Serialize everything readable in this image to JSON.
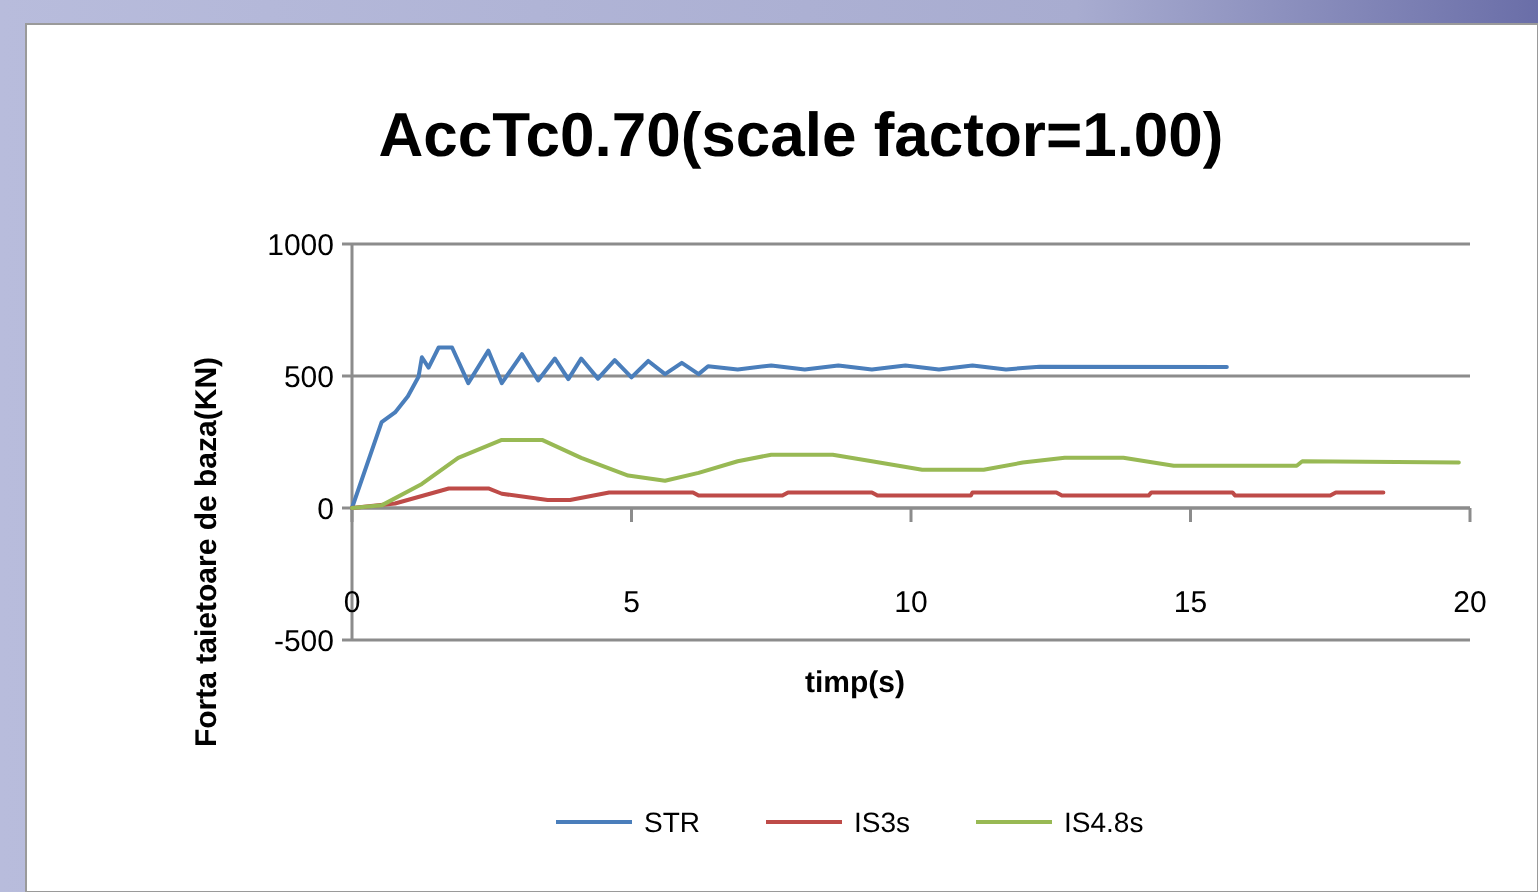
{
  "chart_data": {
    "type": "line",
    "title": "AccTc0.70(scale factor=1.00)",
    "xlabel": "timp(s)",
    "ylabel": "Forta taietoare de baza(KN)",
    "xlim": [
      0,
      20
    ],
    "xticks": [
      0,
      5,
      10,
      15,
      20
    ],
    "ylim": [
      -500,
      1000
    ],
    "yticks": [
      -500,
      0,
      500,
      1000
    ],
    "grid": "y",
    "legend": "bottom",
    "marker": "none",
    "line_style": "solid",
    "series": [
      {
        "name": "STR",
        "color": "#4a7ebb",
        "x": [
          0,
          0.53,
          0.77,
          1.0,
          1.19,
          1.25,
          1.37,
          1.55,
          1.79,
          2.08,
          2.44,
          2.68,
          3.04,
          3.33,
          3.63,
          3.87,
          4.1,
          4.4,
          4.7,
          5.0,
          5.3,
          5.6,
          5.9,
          6.2,
          6.37,
          6.9,
          7.5,
          8.1,
          8.7,
          9.3,
          9.9,
          10.5,
          11.1,
          11.7,
          12.3,
          15.65
        ],
        "values": [
          0,
          325,
          362,
          423,
          497,
          571,
          532,
          608,
          608,
          473,
          596,
          473,
          583,
          483,
          566,
          488,
          566,
          490,
          560,
          495,
          557,
          507,
          550,
          507,
          537,
          525,
          540,
          525,
          540,
          525,
          540,
          525,
          540,
          525,
          535,
          534
        ]
      },
      {
        "name": "IS3s",
        "color": "#be4b48",
        "x": [
          0,
          0.77,
          1.73,
          2.44,
          2.68,
          3.5,
          3.9,
          4.6,
          6.1,
          6.2,
          7.7,
          7.8,
          9.3,
          9.4,
          11.07,
          11.1,
          12.6,
          12.7,
          14.25,
          14.3,
          15.75,
          15.8,
          17.5,
          17.6,
          18.45
        ],
        "values": [
          0,
          17,
          74,
          74,
          54,
          30,
          30,
          59,
          59,
          47,
          47,
          59,
          59,
          47,
          47,
          59,
          59,
          47,
          47,
          59,
          59,
          47,
          47,
          59,
          59
        ]
      },
      {
        "name": "IS4.8s",
        "color": "#98b954",
        "x": [
          0,
          0.53,
          1.25,
          1.9,
          2.68,
          3.4,
          4.1,
          4.94,
          5.6,
          6.2,
          6.9,
          7.5,
          8.6,
          9.3,
          10.2,
          11.3,
          12.0,
          12.75,
          13.8,
          14.7,
          16.9,
          17.0,
          19.8
        ],
        "values": [
          0,
          10,
          91,
          190,
          258,
          258,
          190,
          123,
          103,
          133,
          177,
          202,
          202,
          177,
          145,
          145,
          172,
          190,
          190,
          160,
          160,
          177,
          172
        ]
      }
    ]
  }
}
